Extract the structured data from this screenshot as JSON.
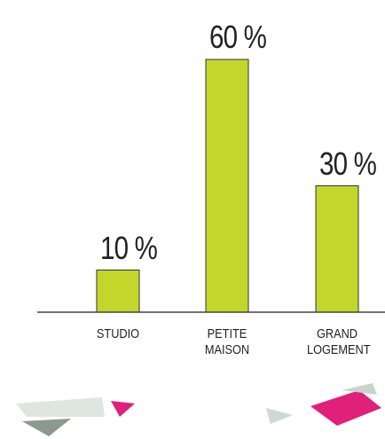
{
  "chart_data": {
    "type": "bar",
    "categories": [
      "STUDIO",
      "PETITE MAISON",
      "GRAND LOGEMENT"
    ],
    "values": [
      10,
      60,
      30
    ],
    "value_labels": [
      "10 %",
      "60 %",
      "30 %"
    ],
    "color": "#c4d62c",
    "ylim": [
      0,
      60
    ]
  }
}
